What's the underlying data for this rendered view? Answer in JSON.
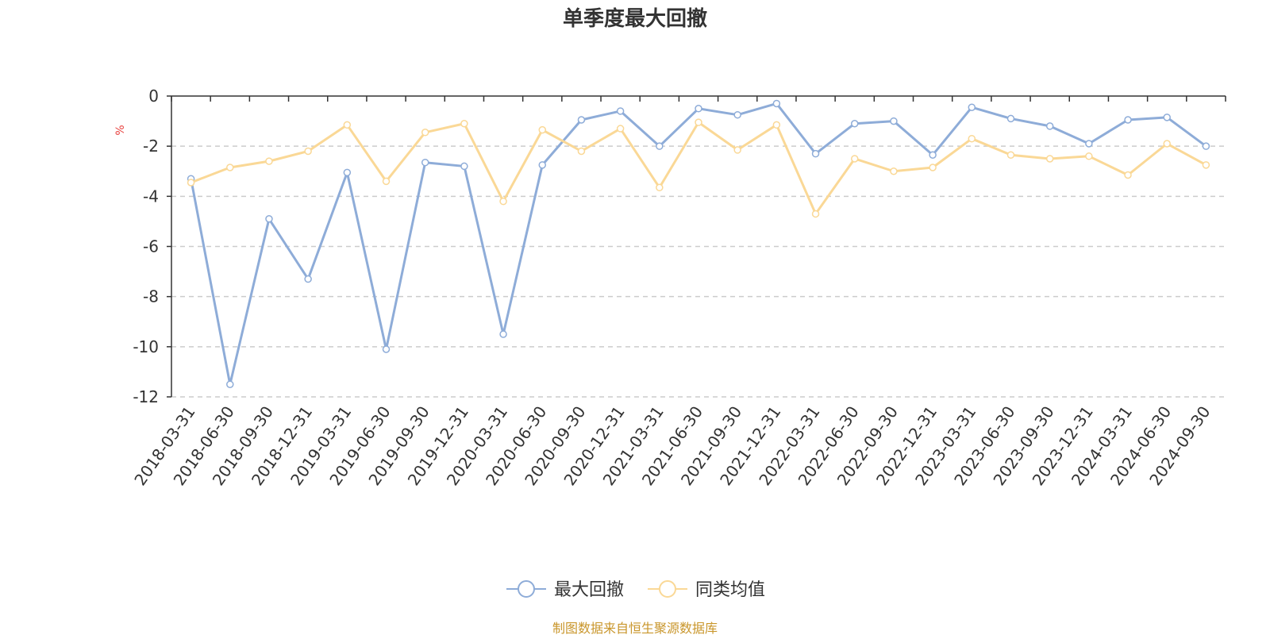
{
  "chart_data": {
    "type": "line",
    "title": "单季度最大回撤",
    "ylabel": "%",
    "ylim": [
      -12,
      0
    ],
    "yticks": [
      0,
      -2,
      -4,
      -6,
      -8,
      -10,
      -12
    ],
    "grid": true,
    "legend_position": "bottom",
    "categories": [
      "2018-03-31",
      "2018-06-30",
      "2018-09-30",
      "2018-12-31",
      "2019-03-31",
      "2019-06-30",
      "2019-09-30",
      "2019-12-31",
      "2020-03-31",
      "2020-06-30",
      "2020-09-30",
      "2020-12-31",
      "2021-03-31",
      "2021-06-30",
      "2021-09-30",
      "2021-12-31",
      "2022-03-31",
      "2022-06-30",
      "2022-09-30",
      "2022-12-31",
      "2023-03-31",
      "2023-06-30",
      "2023-09-30",
      "2023-12-31",
      "2024-03-31",
      "2024-06-30",
      "2024-09-30"
    ],
    "series": [
      {
        "name": "最大回撤",
        "color": "#8eacd8",
        "values": [
          -3.3,
          -11.5,
          -4.9,
          -7.3,
          -3.05,
          -10.1,
          -2.65,
          -2.8,
          -9.5,
          -2.75,
          -0.95,
          -0.6,
          -2.0,
          -0.5,
          -0.75,
          -0.3,
          -2.3,
          -1.1,
          -1.0,
          -2.35,
          -0.45,
          -0.9,
          -1.2,
          -1.9,
          -0.95,
          -0.85,
          -2.0
        ]
      },
      {
        "name": "同类均值",
        "color": "#fad896",
        "values": [
          -3.45,
          -2.85,
          -2.6,
          -2.2,
          -1.15,
          -3.4,
          -1.45,
          -1.1,
          -4.2,
          -1.35,
          -2.2,
          -1.3,
          -3.65,
          -1.05,
          -2.15,
          -1.15,
          -4.7,
          -2.5,
          -3.0,
          -2.85,
          -1.7,
          -2.35,
          -2.5,
          -2.4,
          -3.15,
          -1.9,
          -2.75
        ]
      }
    ]
  },
  "source_note": "制图数据来自恒生聚源数据库",
  "colors": {
    "text": "#333333",
    "axis": "#333333",
    "grid": "#cccccc",
    "unit": "#e8423f",
    "source": "#c9962b"
  }
}
